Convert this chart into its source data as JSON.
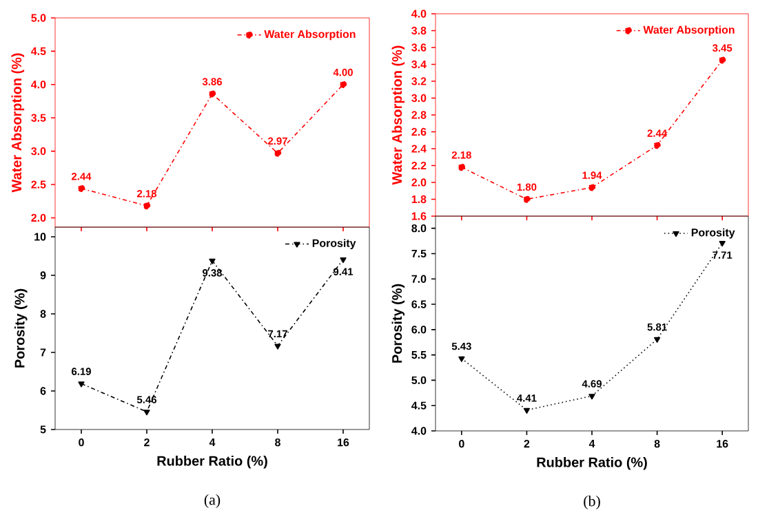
{
  "chart_data": [
    {
      "type": "line",
      "ylabel": "Water Absorption (%)",
      "categories": [
        "0",
        "2",
        "4",
        "8",
        "16"
      ],
      "series": [
        {
          "name": "Water Absorption",
          "color": "#ff0000",
          "values": [
            2.44,
            2.18,
            3.86,
            2.97,
            4.0
          ],
          "value_labels": [
            "2.44",
            "2.18",
            "3.86",
            "2.97",
            "4.00"
          ]
        }
      ],
      "ylim": [
        1.86,
        5.0
      ],
      "yticks": [
        {
          "value": 2.0,
          "label": "2.0"
        },
        {
          "value": 2.5,
          "label": "2.5"
        },
        {
          "value": 3.0,
          "label": "3.0"
        },
        {
          "value": 3.5,
          "label": "3.5"
        },
        {
          "value": 4.0,
          "label": "4.0"
        },
        {
          "value": 4.5,
          "label": "4.5"
        },
        {
          "value": 5.0,
          "label": "5.0"
        }
      ],
      "tick_labels": "y",
      "legend": "top right",
      "marker": "circle",
      "line_style": "dashed"
    },
    {
      "type": "line",
      "xlabel": "Rubber Ratio (%)",
      "ylabel": "Porosity (%)",
      "categories": [
        "0",
        "2",
        "4",
        "8",
        "16"
      ],
      "series": [
        {
          "name": "Porosity",
          "color": "#000000",
          "values": [
            6.19,
            5.46,
            9.38,
            7.17,
            9.41
          ],
          "value_labels": [
            "6.19",
            "5.46",
            "9.38",
            "7.17",
            "9.41"
          ]
        }
      ],
      "ylim": [
        5,
        10.25
      ],
      "yticks": [
        5,
        6,
        7,
        8,
        9,
        10
      ],
      "legend": "top right",
      "marker": "triangle",
      "line_style": "dashed",
      "annotations": [
        "(a)"
      ]
    },
    {
      "type": "line",
      "ylabel": "Water Absorption (%)",
      "categories": [
        "0",
        "2",
        "4",
        "8",
        "16"
      ],
      "series": [
        {
          "name": "Water Absorption",
          "color": "#ff0000",
          "values": [
            2.18,
            1.8,
            1.94,
            2.44,
            3.45
          ],
          "value_labels": [
            "2.18",
            "1.80",
            "1.94",
            "2.44",
            "3.45"
          ]
        }
      ],
      "ylim": [
        1.6,
        4.0
      ],
      "yticks": [
        {
          "value": 1.6,
          "label": "1.6"
        },
        {
          "value": 1.8,
          "label": "1.8"
        },
        {
          "value": 2.0,
          "label": "2.0"
        },
        {
          "value": 2.2,
          "label": "2.2"
        },
        {
          "value": 2.4,
          "label": "2.4"
        },
        {
          "value": 2.6,
          "label": "2.6"
        },
        {
          "value": 2.8,
          "label": "2.8"
        },
        {
          "value": 3.0,
          "label": "3.0"
        },
        {
          "value": 3.2,
          "label": "3.2"
        },
        {
          "value": 3.4,
          "label": "3.4"
        },
        {
          "value": 3.6,
          "label": "3.6"
        },
        {
          "value": 3.8,
          "label": "3.8"
        },
        {
          "value": 4.0,
          "label": "4.0"
        }
      ],
      "tick_labels": "y",
      "legend": "top right",
      "marker": "circle",
      "line_style": "dashed"
    },
    {
      "type": "line",
      "xlabel": "Rubber Ratio (%)",
      "ylabel": "Porosity (%)",
      "categories": [
        "0",
        "2",
        "4",
        "8",
        "16"
      ],
      "series": [
        {
          "name": "Porosity",
          "color": "#000000",
          "values": [
            5.43,
            4.41,
            4.69,
            5.81,
            7.71
          ],
          "value_labels": [
            "5.43",
            "4.41",
            "4.69",
            "5.81",
            "7.71"
          ]
        }
      ],
      "ylim": [
        4.0,
        8.24
      ],
      "yticks": [
        {
          "value": 4.0,
          "label": "4.0"
        },
        {
          "value": 4.5,
          "label": "4.5"
        },
        {
          "value": 5.0,
          "label": "5.0"
        },
        {
          "value": 5.5,
          "label": "5.5"
        },
        {
          "value": 6.0,
          "label": "6.0"
        },
        {
          "value": 6.5,
          "label": "6.5"
        },
        {
          "value": 7.0,
          "label": "7.0"
        },
        {
          "value": 7.5,
          "label": "7.5"
        },
        {
          "value": 8.0,
          "label": "8.0"
        }
      ],
      "legend": "top right",
      "marker": "triangle",
      "line_style": "dotted",
      "annotations": [
        "(b)"
      ]
    }
  ]
}
